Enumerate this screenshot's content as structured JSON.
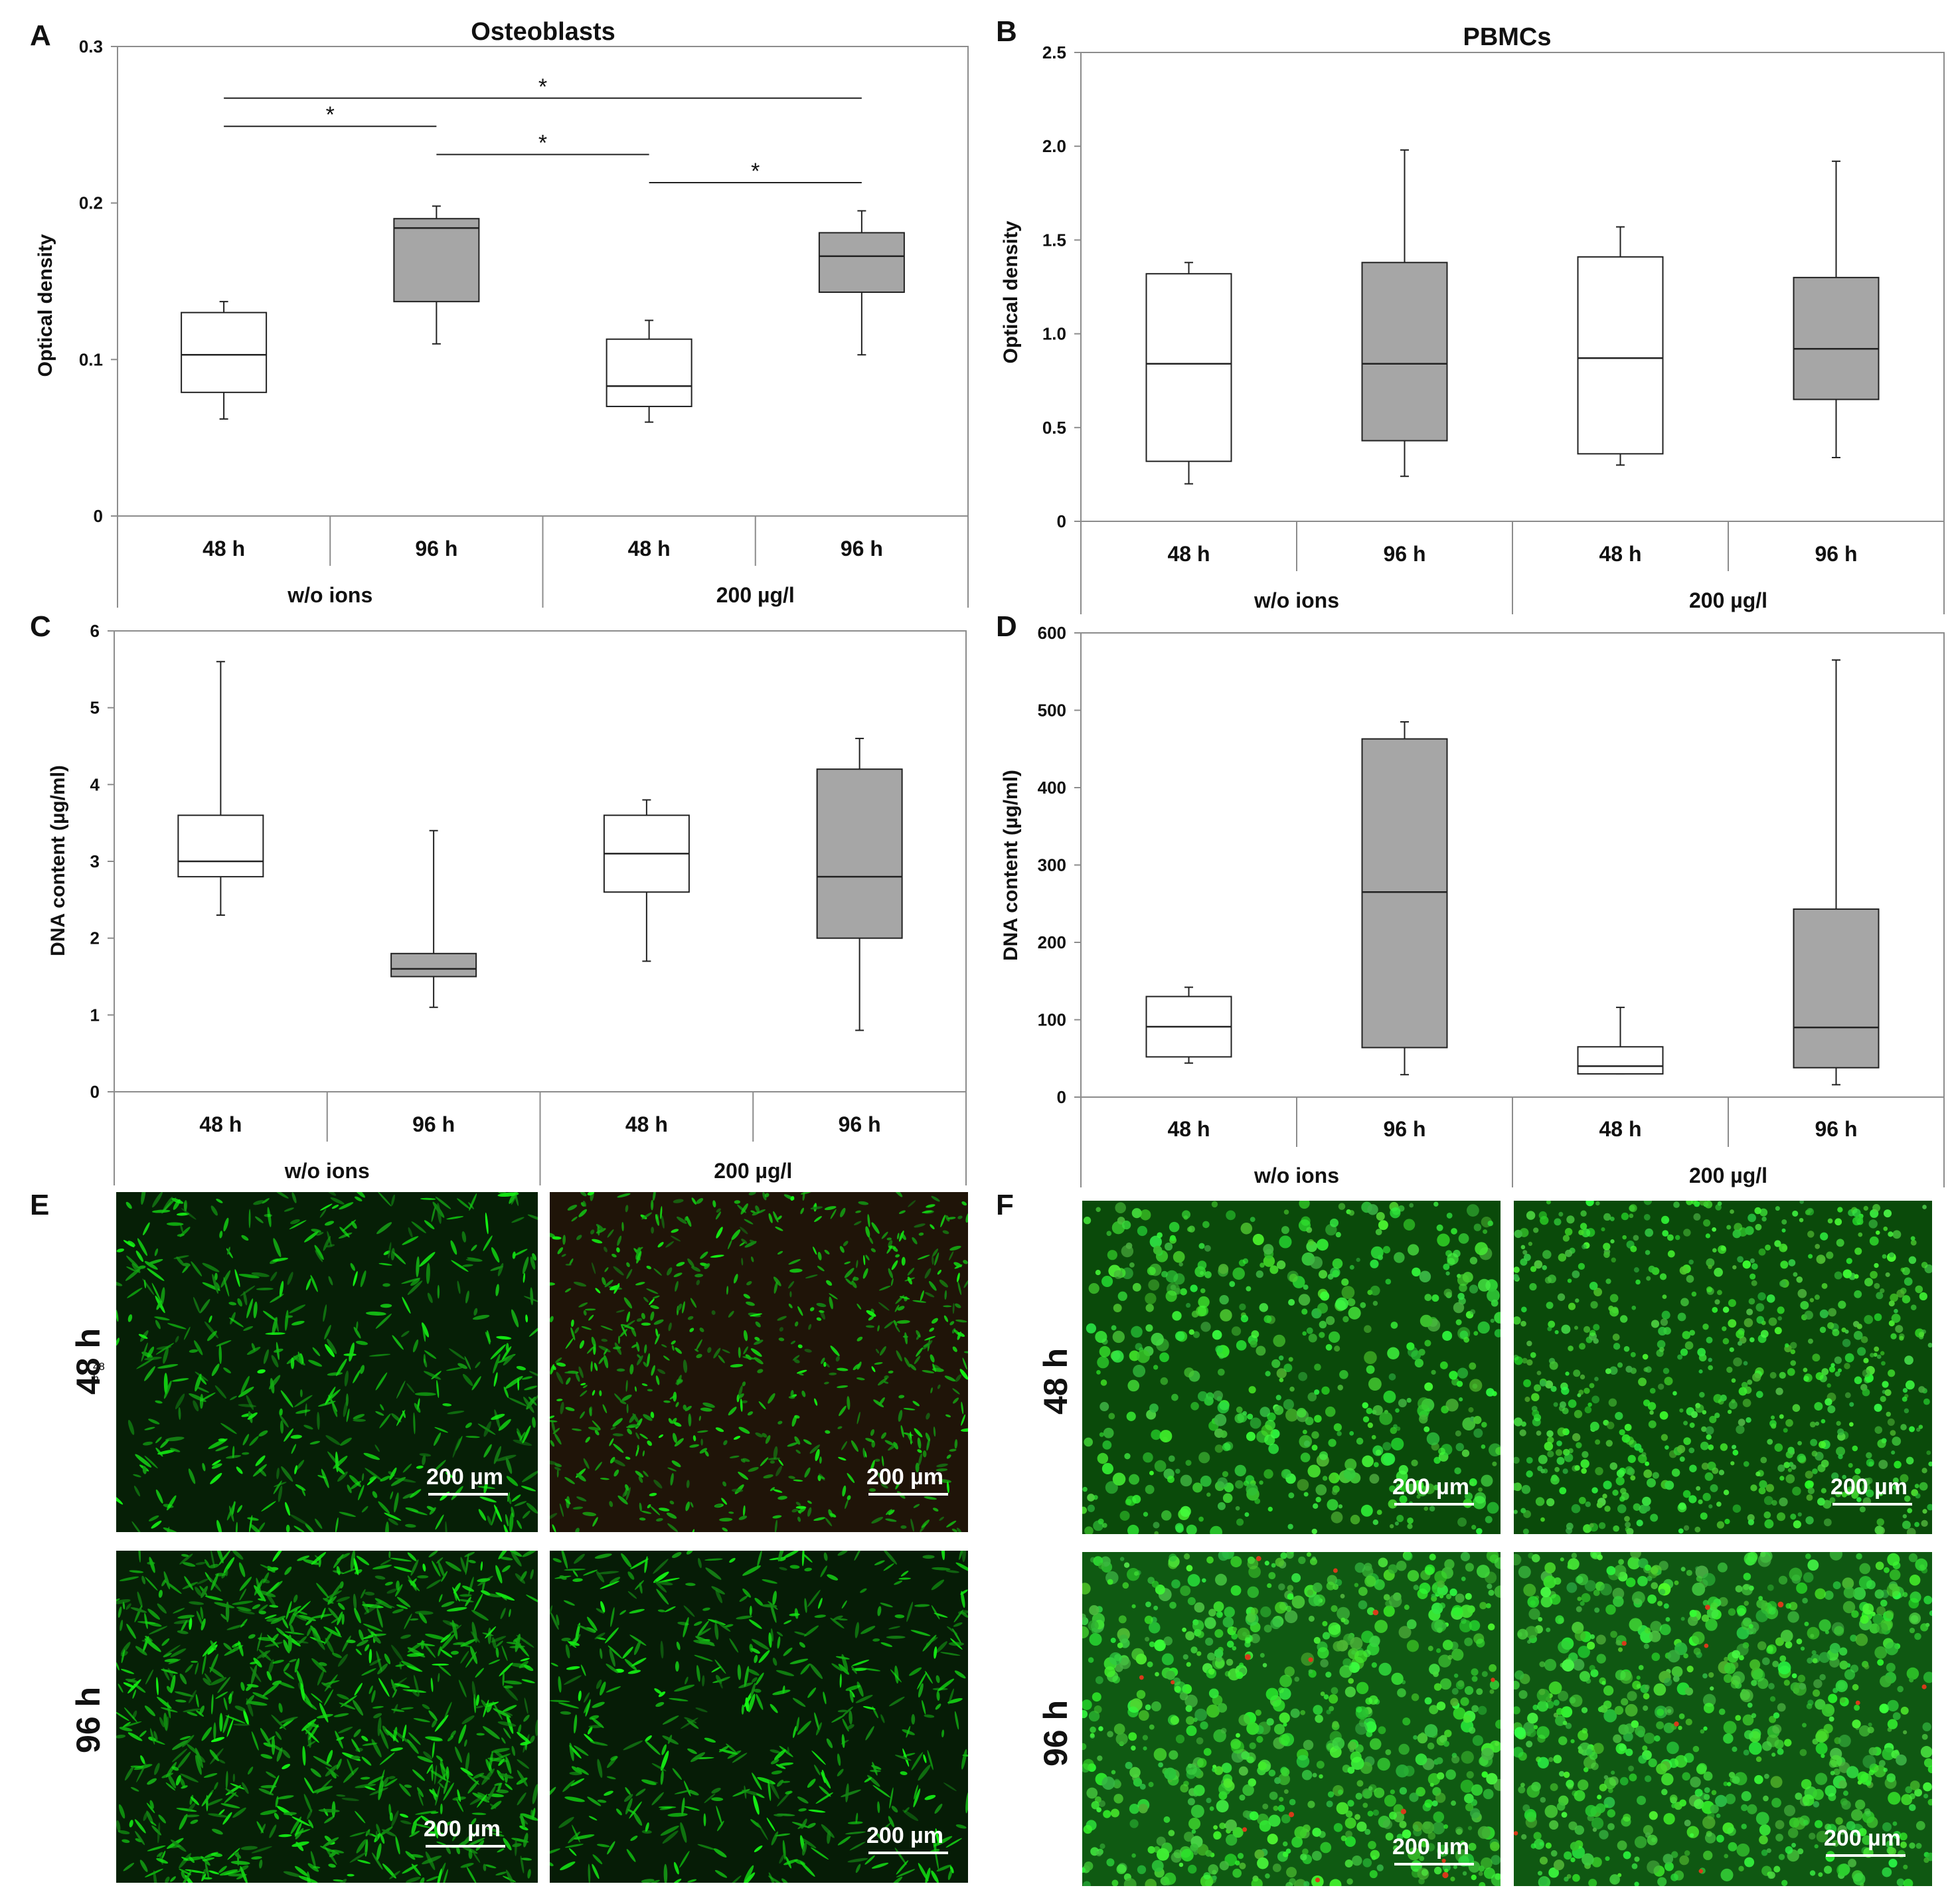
{
  "colors": {
    "wo_ions_box": "#ffffff",
    "ions_box": "#a6a6a6",
    "line": "#222222",
    "frame": "#8c8c8c",
    "micro_bg": "#062306",
    "cell_green": "#3ddc3d",
    "cell_red": "#d83a1a"
  },
  "chart_data": [
    {
      "panel": "A",
      "type": "boxplot",
      "title": "Osteoblasts",
      "ylabel": "Optical density",
      "ylim": [
        0,
        0.3
      ],
      "yticks": [
        "0",
        "0.1",
        "0.2",
        "0.3"
      ],
      "ytick_values": [
        0,
        0.1,
        0.2,
        0.3
      ],
      "categories": [
        "48 h",
        "96 h",
        "48 h",
        "96 h"
      ],
      "groups": [
        "w/o ions",
        "200 µg/l"
      ],
      "boxes": [
        {
          "min": 0.062,
          "q1": 0.079,
          "median": 0.103,
          "q3": 0.13,
          "max": 0.137,
          "fill": "white"
        },
        {
          "min": 0.11,
          "q1": 0.137,
          "median": 0.184,
          "q3": 0.19,
          "max": 0.198,
          "fill": "gray"
        },
        {
          "min": 0.06,
          "q1": 0.07,
          "median": 0.083,
          "q3": 0.113,
          "max": 0.125,
          "fill": "white"
        },
        {
          "min": 0.103,
          "q1": 0.143,
          "median": 0.166,
          "q3": 0.181,
          "max": 0.195,
          "fill": "gray"
        }
      ],
      "significance": [
        {
          "from": 0,
          "to": 3,
          "y": 0.267,
          "label": "*"
        },
        {
          "from": 0,
          "to": 1,
          "y": 0.249,
          "label": "*"
        },
        {
          "from": 1,
          "to": 2,
          "y": 0.231,
          "label": "*"
        },
        {
          "from": 2,
          "to": 3,
          "y": 0.213,
          "label": "*"
        }
      ]
    },
    {
      "panel": "B",
      "type": "boxplot",
      "title": "PBMCs",
      "ylabel": "Optical density",
      "ylim": [
        0,
        2.5
      ],
      "yticks": [
        "0",
        "0.5",
        "1.0",
        "1.5",
        "2.0",
        "2.5"
      ],
      "ytick_values": [
        0,
        0.5,
        1.0,
        1.5,
        2.0,
        2.5
      ],
      "categories": [
        "48 h",
        "96 h",
        "48 h",
        "96 h"
      ],
      "groups": [
        "w/o ions",
        "200 µg/l"
      ],
      "boxes": [
        {
          "min": 0.2,
          "q1": 0.32,
          "median": 0.84,
          "q3": 1.32,
          "max": 1.38,
          "fill": "white"
        },
        {
          "min": 0.24,
          "q1": 0.43,
          "median": 0.84,
          "q3": 1.38,
          "max": 1.98,
          "fill": "gray"
        },
        {
          "min": 0.3,
          "q1": 0.36,
          "median": 0.87,
          "q3": 1.41,
          "max": 1.57,
          "fill": "white"
        },
        {
          "min": 0.34,
          "q1": 0.65,
          "median": 0.92,
          "q3": 1.3,
          "max": 1.92,
          "fill": "gray"
        }
      ],
      "significance": []
    },
    {
      "panel": "C",
      "type": "boxplot",
      "title": "",
      "ylabel": "DNA content (µg/ml)",
      "ylim": [
        0,
        6
      ],
      "yticks": [
        "0",
        "1",
        "2",
        "3",
        "4",
        "5",
        "6"
      ],
      "ytick_values": [
        0,
        1,
        2,
        3,
        4,
        5,
        6
      ],
      "categories": [
        "48 h",
        "96 h",
        "48 h",
        "96 h"
      ],
      "groups": [
        "w/o ions",
        "200 µg/l"
      ],
      "boxes": [
        {
          "min": 2.3,
          "q1": 2.8,
          "median": 3.0,
          "q3": 3.6,
          "max": 5.6,
          "fill": "white"
        },
        {
          "min": 1.1,
          "q1": 1.5,
          "median": 1.6,
          "q3": 1.8,
          "max": 3.4,
          "fill": "gray"
        },
        {
          "min": 1.7,
          "q1": 2.6,
          "median": 3.1,
          "q3": 3.6,
          "max": 3.8,
          "fill": "white"
        },
        {
          "min": 0.8,
          "q1": 2.0,
          "median": 2.8,
          "q3": 4.2,
          "max": 4.6,
          "fill": "gray"
        }
      ],
      "significance": []
    },
    {
      "panel": "D",
      "type": "boxplot",
      "title": "",
      "ylabel": "DNA content (µg/ml)",
      "ylim": [
        0,
        600
      ],
      "yticks": [
        "0",
        "100",
        "200",
        "300",
        "400",
        "500",
        "600"
      ],
      "ytick_values": [
        0,
        100,
        200,
        300,
        400,
        500,
        600
      ],
      "categories": [
        "48 h",
        "96 h",
        "48 h",
        "96 h"
      ],
      "groups": [
        "w/o ions",
        "200 µg/l"
      ],
      "boxes": [
        {
          "min": 44,
          "q1": 52,
          "median": 91,
          "q3": 130,
          "max": 142,
          "fill": "white"
        },
        {
          "min": 29,
          "q1": 64,
          "median": 265,
          "q3": 463,
          "max": 485,
          "fill": "gray"
        },
        {
          "min": 30,
          "q1": 30,
          "median": 40,
          "q3": 65,
          "max": 116,
          "fill": "white"
        },
        {
          "min": 16,
          "q1": 38,
          "median": 90,
          "q3": 243,
          "max": 565,
          "fill": "gray"
        }
      ],
      "significance": []
    }
  ],
  "images": {
    "E": {
      "label": "E",
      "row_labels": [
        "48 h",
        "96 h"
      ],
      "scale_bars": [
        "200 µm",
        "200 µm",
        "200 µm",
        "200 µm"
      ]
    },
    "F": {
      "label": "F",
      "row_labels": [
        "48 h",
        "96 h"
      ],
      "scale_bars": [
        "200 µm",
        "200 µm",
        "200 µm",
        "200 µm"
      ]
    }
  }
}
